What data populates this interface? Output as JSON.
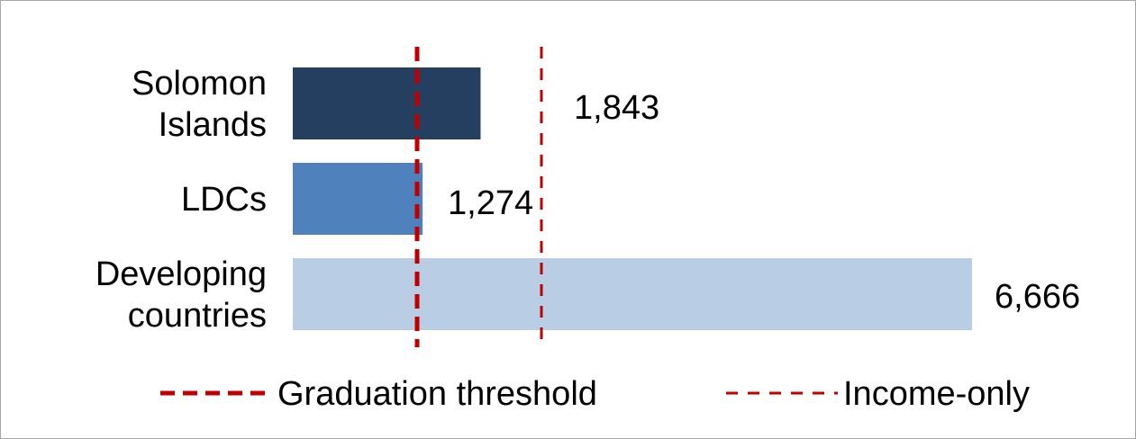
{
  "chart_data": {
    "type": "bar",
    "orientation": "horizontal",
    "categories": [
      "Solomon Islands",
      "LDCs",
      "Developing countries"
    ],
    "category_lines": [
      [
        "Solomon",
        "Islands"
      ],
      [
        "LDCs"
      ],
      [
        "Developing",
        "countries"
      ]
    ],
    "values": [
      1843,
      1274,
      6666
    ],
    "value_labels": [
      "1,843",
      "1,274",
      "6,666"
    ],
    "bar_colors": [
      "#243f60",
      "#4f81bd",
      "#b9cde5"
    ],
    "xlim": [
      0,
      6666
    ],
    "grid": false,
    "title": "",
    "xlabel": "",
    "ylabel": "",
    "reference_lines": [
      {
        "name": "Graduation threshold",
        "value": 1222,
        "color": "#c00000",
        "style": "dashed-thick"
      },
      {
        "name": "Income-only",
        "value": 2444,
        "color": "#c00000",
        "style": "dashed"
      }
    ],
    "legend_position": "bottom"
  }
}
